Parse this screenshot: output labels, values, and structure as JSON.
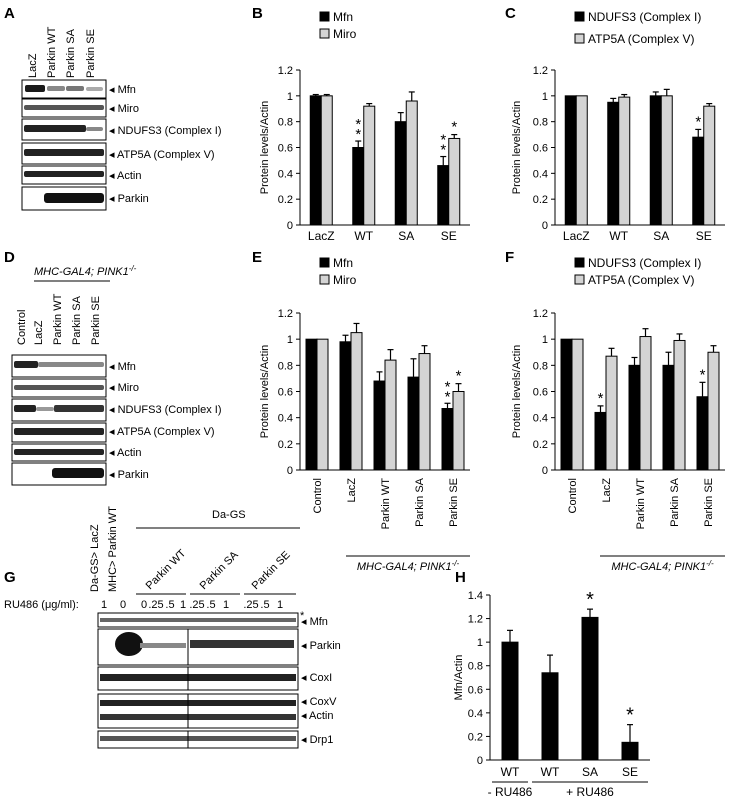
{
  "panel_letters": [
    "A",
    "B",
    "C",
    "D",
    "E",
    "F",
    "G",
    "H"
  ],
  "panel_a": {
    "lane_labels": [
      "LacZ",
      "Parkin WT",
      "Parkin SA",
      "Parkin SE"
    ],
    "blot_labels": [
      "Mfn",
      "Miro",
      "NDUFS3 (Complex I)",
      "ATP5A (Complex V)",
      "Actin",
      "Parkin"
    ]
  },
  "panel_d": {
    "genotype": "MHC-GAL4; PINK1",
    "genotype_sup": "-/-",
    "lane_labels": [
      "Control",
      "LacZ",
      "Parkin WT",
      "Parkin SA",
      "Parkin SE"
    ],
    "blot_labels": [
      "Mfn",
      "Miro",
      "NDUFS3 (Complex I)",
      "ATP5A (Complex V)",
      "Actin",
      "Parkin"
    ]
  },
  "panel_g": {
    "top_lane_labels": [
      "Da-GS> LacZ",
      "MHC> Parkin WT"
    ],
    "header": "Da-GS",
    "group_labels": [
      "Parkin WT",
      "Parkin SA",
      "Parkin SE"
    ],
    "ru_label": "RU486 (μg/ml):",
    "ru_values": [
      "1",
      "0",
      "0",
      ".25",
      ".5",
      "1",
      ".25",
      ".5",
      "1",
      ".25",
      ".5",
      "1"
    ],
    "blot_labels": [
      "Mfn",
      "Parkin",
      "CoxI",
      "CoxV",
      "Actin",
      "Drp1"
    ],
    "asterisk": "*"
  },
  "chart_data": [
    {
      "panel": "B",
      "type": "bar",
      "ylabel": "Protein levels/Actin",
      "ylim": [
        0,
        1.2
      ],
      "yticks": [
        "0",
        "0.2",
        "0.4",
        "0.6",
        "0.8",
        "1",
        "1.2"
      ],
      "categories": [
        "LacZ",
        "WT",
        "SA",
        "SE"
      ],
      "series": [
        {
          "name": "Mfn",
          "color": "#000000",
          "values": [
            1.0,
            0.6,
            0.8,
            0.46
          ],
          "errors": [
            0.01,
            0.05,
            0.07,
            0.07
          ]
        },
        {
          "name": "Miro",
          "color": "#d4d4d4",
          "values": [
            1.0,
            0.92,
            0.96,
            0.67
          ],
          "errors": [
            0.01,
            0.02,
            0.07,
            0.03
          ]
        }
      ],
      "annotations": [
        {
          "category": "WT",
          "series": "Mfn",
          "text": "**"
        },
        {
          "category": "SE",
          "series": "Mfn",
          "text": "**"
        },
        {
          "category": "SE",
          "series": "Miro",
          "text": "*"
        }
      ],
      "legend": "top-left"
    },
    {
      "panel": "C",
      "type": "bar",
      "ylabel": "Protein levels/Actin",
      "ylim": [
        0,
        1.2
      ],
      "yticks": [
        "0",
        "0.2",
        "0.4",
        "0.6",
        "0.8",
        "1",
        "1.2"
      ],
      "categories": [
        "LacZ",
        "WT",
        "SA",
        "SE"
      ],
      "series": [
        {
          "name": "NDUFS3 (Complex I)",
          "color": "#000000",
          "values": [
            1.0,
            0.95,
            1.0,
            0.68
          ],
          "errors": [
            0.0,
            0.03,
            0.03,
            0.06
          ]
        },
        {
          "name": "ATP5A (Complex V)",
          "color": "#d4d4d4",
          "values": [
            1.0,
            0.99,
            1.0,
            0.92
          ],
          "errors": [
            0.0,
            0.02,
            0.05,
            0.02
          ]
        }
      ],
      "annotations": [
        {
          "category": "SE",
          "series": "NDUFS3 (Complex I)",
          "text": "*"
        }
      ],
      "legend": "top-left"
    },
    {
      "panel": "E",
      "type": "bar",
      "ylabel": "Protein levels/Actin",
      "ylim": [
        0,
        1.2
      ],
      "yticks": [
        "0",
        "0.2",
        "0.4",
        "0.6",
        "0.8",
        "1",
        "1.2"
      ],
      "categories": [
        "Control",
        "LacZ",
        "Parkin WT",
        "Parkin SA",
        "Parkin SE"
      ],
      "series": [
        {
          "name": "Mfn",
          "color": "#000000",
          "values": [
            1.0,
            0.98,
            0.68,
            0.71,
            0.47
          ],
          "errors": [
            0.0,
            0.05,
            0.07,
            0.14,
            0.04
          ]
        },
        {
          "name": "Miro",
          "color": "#d4d4d4",
          "values": [
            1.0,
            1.05,
            0.84,
            0.89,
            0.6
          ],
          "errors": [
            0.0,
            0.07,
            0.08,
            0.06,
            0.06
          ]
        }
      ],
      "annotations": [
        {
          "category": "Parkin SE",
          "series": "Mfn",
          "text": "**"
        },
        {
          "category": "Parkin SE",
          "series": "Miro",
          "text": "*"
        }
      ],
      "group_label": "MHC-GAL4; PINK1",
      "group_label_sup": "-/-",
      "legend": "top-left"
    },
    {
      "panel": "F",
      "type": "bar",
      "ylabel": "Protein levels/Actin",
      "ylim": [
        0,
        1.2
      ],
      "yticks": [
        "0",
        "0.2",
        "0.4",
        "0.6",
        "0.8",
        "1",
        "1.2"
      ],
      "categories": [
        "Control",
        "LacZ",
        "Parkin WT",
        "Parkin SA",
        "Parkin SE"
      ],
      "series": [
        {
          "name": "NDUFS3 (Complex I)",
          "color": "#000000",
          "values": [
            1.0,
            0.44,
            0.8,
            0.8,
            0.56
          ],
          "errors": [
            0.0,
            0.05,
            0.06,
            0.1,
            0.11
          ]
        },
        {
          "name": "ATP5A (Complex V)",
          "color": "#d4d4d4",
          "values": [
            1.0,
            0.87,
            1.02,
            0.99,
            0.9
          ],
          "errors": [
            0.0,
            0.06,
            0.06,
            0.05,
            0.05
          ]
        }
      ],
      "annotations": [
        {
          "category": "LacZ",
          "series": "NDUFS3 (Complex I)",
          "text": "*"
        },
        {
          "category": "Parkin SE",
          "series": "NDUFS3 (Complex I)",
          "text": "*"
        }
      ],
      "group_label": "MHC-GAL4; PINK1",
      "group_label_sup": "-/-",
      "legend": "top-left"
    },
    {
      "panel": "H",
      "type": "bar",
      "ylabel": "Mfn/Actin",
      "ylim": [
        0,
        1.4
      ],
      "yticks": [
        "0",
        "0.2",
        "0.4",
        "0.6",
        "0.8",
        "1",
        "1.2",
        "1.4"
      ],
      "categories": [
        "WT",
        "WT",
        "SA",
        "SE"
      ],
      "series": [
        {
          "color": "#000000",
          "values": [
            1.0,
            0.74,
            1.21,
            0.15
          ],
          "errors": [
            0.1,
            0.15,
            0.07,
            0.15
          ]
        }
      ],
      "annotations": [
        {
          "index": 2,
          "text": "*"
        },
        {
          "index": 3,
          "text": "*"
        }
      ],
      "treatment_labels": [
        "- RU486",
        "+ RU486"
      ]
    }
  ]
}
